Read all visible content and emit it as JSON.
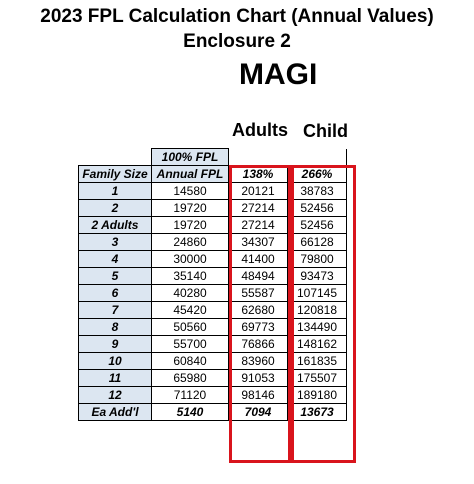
{
  "title_line1": "2023 FPL Calculation Chart (Annual Values)",
  "title_line2": "Enclosure 2",
  "magi": "MAGI",
  "column_headers": {
    "adults": "Adults",
    "child": "Child"
  },
  "table": {
    "fpl_header": "100% FPL",
    "col_family_size": "Family Size",
    "col_annual_fpl": "Annual FPL",
    "pct_adults": "138%",
    "pct_child": "266%",
    "rows": [
      {
        "size": "1",
        "fpl": "14580",
        "adults": "20121",
        "child": "38783"
      },
      {
        "size": "2",
        "fpl": "19720",
        "adults": "27214",
        "child": "52456"
      },
      {
        "size": "2 Adults",
        "fpl": "19720",
        "adults": "27214",
        "child": "52456"
      },
      {
        "size": "3",
        "fpl": "24860",
        "adults": "34307",
        "child": "66128"
      },
      {
        "size": "4",
        "fpl": "30000",
        "adults": "41400",
        "child": "79800"
      },
      {
        "size": "5",
        "fpl": "35140",
        "adults": "48494",
        "child": "93473"
      },
      {
        "size": "6",
        "fpl": "40280",
        "adults": "55587",
        "child": "107145"
      },
      {
        "size": "7",
        "fpl": "45420",
        "adults": "62680",
        "child": "120818"
      },
      {
        "size": "8",
        "fpl": "50560",
        "adults": "69773",
        "child": "134490"
      },
      {
        "size": "9",
        "fpl": "55700",
        "adults": "76866",
        "child": "148162"
      },
      {
        "size": "10",
        "fpl": "60840",
        "adults": "83960",
        "child": "161835"
      },
      {
        "size": "11",
        "fpl": "65980",
        "adults": "91053",
        "child": "175507"
      },
      {
        "size": "12",
        "fpl": "71120",
        "adults": "98146",
        "child": "189180"
      },
      {
        "size": "Ea Add'l",
        "fpl": "5140",
        "adults": "7094",
        "child": "13673"
      }
    ]
  },
  "colors": {
    "header_fill": "#dce6f1",
    "highlight_border": "#d9141c"
  }
}
